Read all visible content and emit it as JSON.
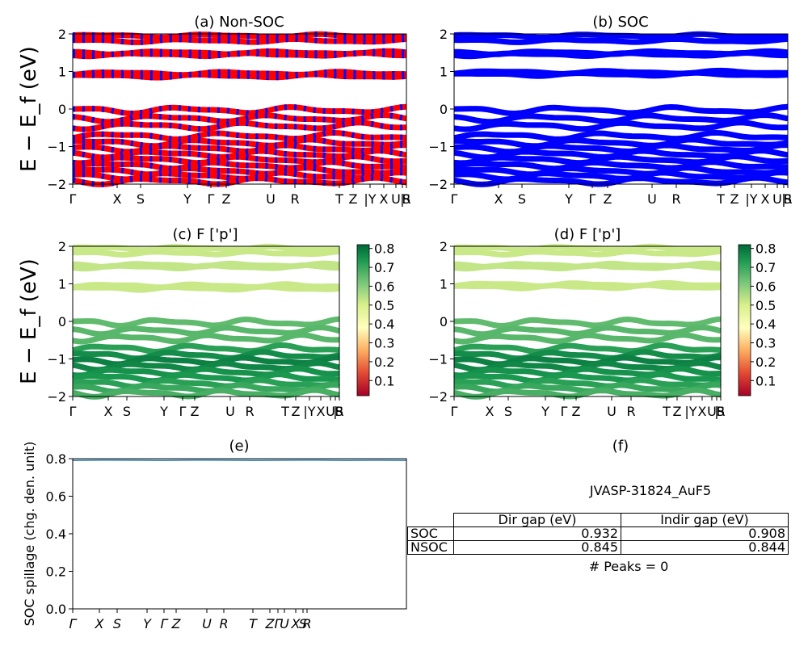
{
  "chart_data": [
    {
      "type": "line",
      "title": "(a) Non-SOC",
      "ylabel": "E − E_f (eV)",
      "ylim": [
        -2,
        2
      ],
      "yticks": [
        "−2",
        "−1",
        "0",
        "1",
        "2"
      ],
      "xtick_labels": [
        "Γ",
        "X",
        "S",
        "Y",
        "Γ",
        "Z",
        "U",
        "R",
        "T",
        "Z",
        "|Y",
        "X",
        "U",
        "|",
        "S",
        "R"
      ],
      "bands": [
        1.95,
        1.82,
        1.5,
        1.45,
        0.95,
        0.88,
        -0.03,
        -0.25,
        -0.45,
        -0.72,
        -0.9,
        -1.05,
        -1.2,
        -1.35,
        -1.5,
        -1.65,
        -1.78,
        -1.92
      ],
      "colors": {
        "band": "#ff0000",
        "accent": "#0000ff"
      }
    },
    {
      "type": "line",
      "title": "(b) SOC",
      "ylim": [
        -2,
        2
      ],
      "yticks": [
        "−2",
        "−1",
        "0",
        "1",
        "2"
      ],
      "xtick_labels": [
        "Γ",
        "X",
        "S",
        "Y",
        "Γ",
        "Z",
        "U",
        "R",
        "T",
        "Z",
        "|Y",
        "X",
        "U",
        "|",
        "S",
        "R"
      ],
      "bands": [
        1.95,
        1.82,
        1.5,
        1.45,
        0.98,
        0.92,
        -0.03,
        -0.25,
        -0.45,
        -0.72,
        -0.9,
        -1.05,
        -1.2,
        -1.35,
        -1.5,
        -1.65,
        -1.78,
        -1.92
      ],
      "colors": {
        "band": "#0000ff"
      }
    },
    {
      "type": "scatter",
      "title": "(c)  F ['p']",
      "ylabel": "E − E_f (eV)",
      "ylim": [
        -2,
        2
      ],
      "yticks": [
        "−2",
        "−1",
        "0",
        "1",
        "2"
      ],
      "xtick_labels": [
        "Γ",
        "X",
        "S",
        "Y",
        "Γ",
        "Z",
        "U",
        "R",
        "T",
        "Z",
        "|Y",
        "X",
        "U",
        "|",
        "S",
        "R"
      ],
      "colorbar_ticks": [
        "0.1",
        "0.2",
        "0.3",
        "0.4",
        "0.5",
        "0.6",
        "0.7",
        "0.8"
      ],
      "colorbar_range": [
        0.02,
        0.82
      ],
      "band_weights": [
        [
          1.95,
          0.52
        ],
        [
          1.82,
          0.52
        ],
        [
          1.5,
          0.53
        ],
        [
          1.45,
          0.53
        ],
        [
          0.95,
          0.52
        ],
        [
          0.88,
          0.52
        ],
        [
          -0.03,
          0.65
        ],
        [
          -0.25,
          0.66
        ],
        [
          -0.45,
          0.66
        ],
        [
          -0.72,
          0.72
        ],
        [
          -0.9,
          0.76
        ],
        [
          -1.05,
          0.78
        ],
        [
          -1.2,
          0.77
        ],
        [
          -1.35,
          0.75
        ],
        [
          -1.5,
          0.74
        ],
        [
          -1.65,
          0.72
        ],
        [
          -1.78,
          0.7
        ],
        [
          -1.92,
          0.68
        ]
      ]
    },
    {
      "type": "scatter",
      "title": "(d) F ['p']",
      "ylim": [
        -2,
        2
      ],
      "yticks": [
        "−2",
        "−1",
        "0",
        "1",
        "2"
      ],
      "xtick_labels": [
        "Γ",
        "X",
        "S",
        "Y",
        "Γ",
        "Z",
        "U",
        "R",
        "T",
        "Z",
        "|Y",
        "X",
        "U",
        "|",
        "S",
        "R"
      ],
      "colorbar_ticks": [
        "0.1",
        "0.2",
        "0.3",
        "0.4",
        "0.5",
        "0.6",
        "0.7",
        "0.8"
      ],
      "colorbar_range": [
        0.02,
        0.82
      ],
      "band_weights": [
        [
          1.95,
          0.52
        ],
        [
          1.82,
          0.52
        ],
        [
          1.5,
          0.53
        ],
        [
          1.45,
          0.53
        ],
        [
          0.98,
          0.52
        ],
        [
          0.92,
          0.52
        ],
        [
          -0.03,
          0.65
        ],
        [
          -0.25,
          0.66
        ],
        [
          -0.45,
          0.66
        ],
        [
          -0.72,
          0.72
        ],
        [
          -0.9,
          0.76
        ],
        [
          -1.05,
          0.78
        ],
        [
          -1.2,
          0.77
        ],
        [
          -1.35,
          0.75
        ],
        [
          -1.5,
          0.74
        ],
        [
          -1.65,
          0.72
        ],
        [
          -1.78,
          0.7
        ],
        [
          -1.92,
          0.68
        ]
      ]
    },
    {
      "type": "line",
      "title": "(e)",
      "ylabel": "SOC spillage (chg. den. unit)",
      "ylim": [
        0,
        0.87
      ],
      "yticks": [
        "0.0",
        "0.2",
        "0.4",
        "0.6",
        "0.8"
      ],
      "xtick_labels": [
        "Γ",
        "X",
        "S",
        "Y",
        "Γ",
        "Z",
        "U",
        "R",
        "T",
        "Z",
        "Γ",
        "U",
        "X",
        "S",
        "R"
      ],
      "series": [
        {
          "values": [
            0.86,
            0.862,
            0.861,
            0.86,
            0.862,
            0.861,
            0.86,
            0.861,
            0.862,
            0.86,
            0.861,
            0.86
          ]
        }
      ],
      "colors": {
        "line": "#1f77b4"
      }
    }
  ],
  "panel_f": {
    "title": "(f)",
    "material": "JVASP-31824_AuF5",
    "table": {
      "headers": [
        "Dir gap (eV)",
        "Indir gap (eV)"
      ],
      "rows": [
        {
          "label": "SOC",
          "dir": "0.932",
          "indir": "0.908"
        },
        {
          "label": "NSOC",
          "dir": "0.845",
          "indir": "0.844"
        }
      ]
    },
    "peaks": "# Peaks = 0"
  }
}
